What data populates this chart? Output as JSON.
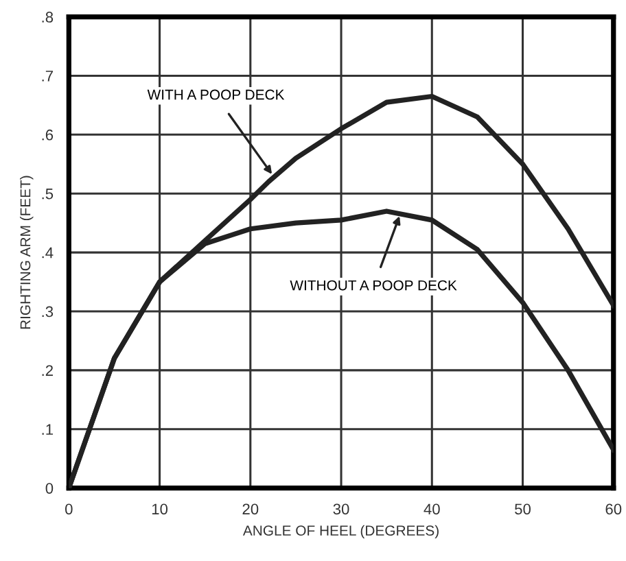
{
  "chart_data": {
    "type": "line",
    "xlabel": "ANGLE OF HEEL (DEGREES)",
    "ylabel": "RIGHTING ARM (FEET)",
    "xlim": [
      0,
      60
    ],
    "ylim": [
      0,
      0.8
    ],
    "xticks": [
      0,
      10,
      20,
      30,
      40,
      50,
      60
    ],
    "yticks": [
      {
        "value": 0,
        "label": "0"
      },
      {
        "value": 0.1,
        "label": ".1"
      },
      {
        "value": 0.2,
        "label": ".2"
      },
      {
        "value": 0.3,
        "label": ".3"
      },
      {
        "value": 0.4,
        "label": ".4"
      },
      {
        "value": 0.5,
        "label": ".5"
      },
      {
        "value": 0.6,
        "label": ".6"
      },
      {
        "value": 0.7,
        "label": ".7"
      },
      {
        "value": 0.8,
        "label": ".8"
      }
    ],
    "grid": true,
    "marker": "none",
    "line_style": "solid",
    "series": [
      {
        "color": "#222222",
        "x": [
          0,
          5,
          10,
          15,
          20,
          22,
          25,
          30,
          35,
          40,
          45,
          50,
          55,
          60
        ],
        "values": [
          0,
          0.22,
          0.35,
          0.42,
          0.49,
          0.52,
          0.56,
          0.61,
          0.655,
          0.665,
          0.63,
          0.55,
          0.44,
          0.31
        ]
      },
      {
        "color": "#222222",
        "x": [
          0,
          5,
          10,
          15,
          18,
          20,
          25,
          30,
          35,
          40,
          45,
          50,
          55,
          60
        ],
        "values": [
          0,
          0.22,
          0.35,
          0.415,
          0.43,
          0.44,
          0.45,
          0.455,
          0.47,
          0.455,
          0.405,
          0.315,
          0.2,
          0.065
        ]
      }
    ],
    "annotations": [
      {
        "text": "WITH A POOP DECK",
        "x": 22.5,
        "y": 0.53
      },
      {
        "text": "WITHOUT A POOP DECK",
        "x": 36.5,
        "y": 0.465
      }
    ]
  }
}
